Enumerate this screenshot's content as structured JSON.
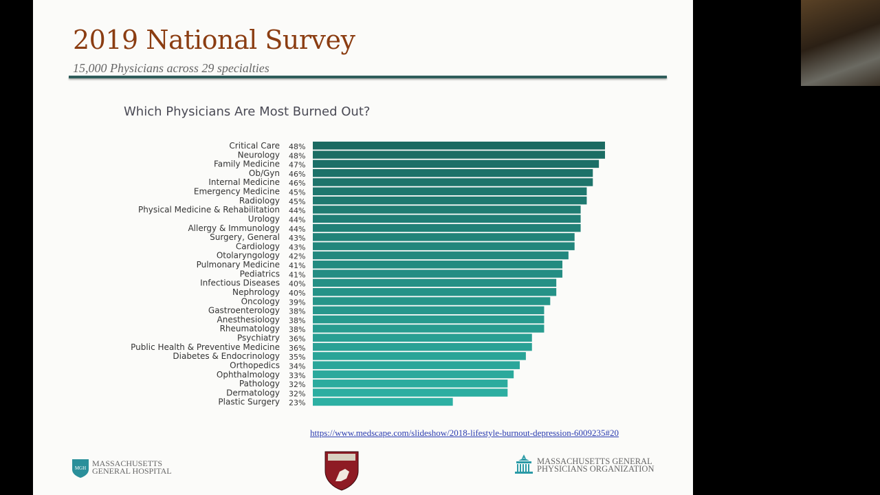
{
  "slide": {
    "title": "2019 National Survey",
    "subtitle": "15,000 Physicians across 29 specialties",
    "source_link": "https://www.medscape.com/slideshow/2018-lifestyle-burnout-depression-6009235#20",
    "logos": {
      "left": {
        "line1": "MASSACHUSETTS",
        "line2": "GENERAL HOSPITAL",
        "badge": "MGH"
      },
      "center": {
        "name": "harvard-shield"
      },
      "right": {
        "line1": "MASSACHUSETTS GENERAL",
        "line2": "PHYSICIANS ORGANIZATION"
      }
    },
    "colors": {
      "title": "#8b3d12",
      "bar_top": "#1b6a62",
      "bar_bottom": "#2db0a3",
      "rule": "#2f5d5b"
    }
  },
  "chart_data": {
    "type": "bar",
    "orientation": "horizontal",
    "title": "Which Physicians Are Most Burned Out?",
    "categories": [
      "Critical Care",
      "Neurology",
      "Family Medicine",
      "Ob/Gyn",
      "Internal Medicine",
      "Emergency Medicine",
      "Radiology",
      "Physical Medicine & Rehabilitation",
      "Urology",
      "Allergy & Immunology",
      "Surgery, General",
      "Cardiology",
      "Otolaryngology",
      "Pulmonary Medicine",
      "Pediatrics",
      "Infectious Diseases",
      "Nephrology",
      "Oncology",
      "Gastroenterology",
      "Anesthesiology",
      "Rheumatology",
      "Psychiatry",
      "Public Health & Preventive Medicine",
      "Diabetes & Endocrinology",
      "Orthopedics",
      "Ophthalmology",
      "Pathology",
      "Dermatology",
      "Plastic Surgery"
    ],
    "values": [
      48,
      48,
      47,
      46,
      46,
      45,
      45,
      44,
      44,
      44,
      43,
      43,
      42,
      41,
      41,
      40,
      40,
      39,
      38,
      38,
      38,
      36,
      36,
      35,
      34,
      33,
      32,
      32,
      23
    ],
    "labels": [
      "48%",
      "48%",
      "47%",
      "46%",
      "46%",
      "45%",
      "45%",
      "44%",
      "44%",
      "44%",
      "43%",
      "43%",
      "42%",
      "41%",
      "41%",
      "40%",
      "40%",
      "39%",
      "38%",
      "38%",
      "38%",
      "36%",
      "36%",
      "35%",
      "34%",
      "33%",
      "32%",
      "32%",
      "23%"
    ],
    "unit": "%",
    "xlim": [
      0,
      48
    ],
    "grid": false,
    "legend": "none"
  }
}
